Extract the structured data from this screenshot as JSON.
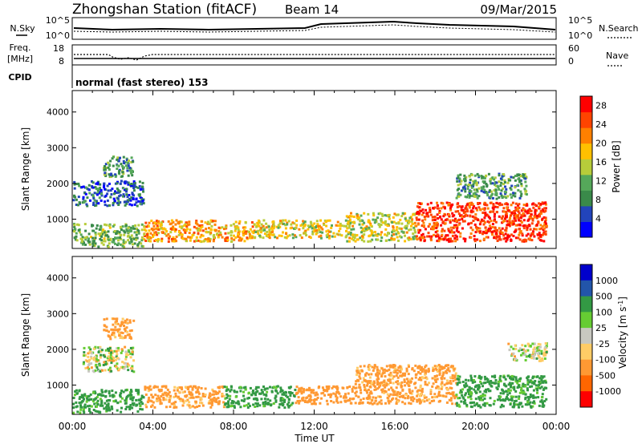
{
  "header": {
    "title": "Zhongshan Station (fitACF)",
    "beam": "Beam 14",
    "date": "09/Mar/2015"
  },
  "noise_panel": {
    "left_label": "N.Sky",
    "right_label": "N.Search",
    "ticks_left": [
      "10^5",
      "10^0"
    ],
    "ticks_right": [
      "10^5",
      "10^0"
    ]
  },
  "freq_panel": {
    "left_label_1": "Freq.",
    "left_label_2": "[MHz]",
    "ticks_left": [
      "18",
      "8"
    ],
    "right_label": "Nave",
    "ticks_right": [
      "60",
      "0"
    ]
  },
  "cpid": {
    "label": "CPID",
    "program": "normal (fast stereo) 153"
  },
  "colors": {
    "power_scale": [
      "#0000ff",
      "#2244bb",
      "#3a8a4a",
      "#55a85a",
      "#b7cc3a",
      "#ffc000",
      "#ff8000",
      "#ff4400",
      "#ff0000"
    ],
    "velocity_scale": [
      "#ff0000",
      "#ff6600",
      "#ff9933",
      "#ffcc66",
      "#c8c8c0",
      "#66cc33",
      "#339944",
      "#2255aa",
      "#0000cc"
    ]
  },
  "chart_data": [
    {
      "type": "heatmap",
      "name": "power",
      "ylabel": "Slant Range [km]",
      "xlabel": "",
      "ylim": [
        180,
        4600
      ],
      "yticks": [
        1000,
        2000,
        3000,
        4000
      ],
      "xlim": [
        0,
        24
      ],
      "colorbar": {
        "label": "Power [dB]",
        "ticks": [
          "4",
          "8",
          "12",
          "16",
          "20",
          "24",
          "28"
        ],
        "range": [
          0,
          30
        ]
      },
      "scatter_regions": [
        {
          "t0": 0.0,
          "t1": 3.5,
          "r0": 250,
          "r1": 900,
          "value": 12
        },
        {
          "t0": 1.5,
          "t1": 3.0,
          "r0": 2200,
          "r1": 2800,
          "value": 10
        },
        {
          "t0": 0.0,
          "t1": 3.5,
          "r0": 1400,
          "r1": 2100,
          "value": 6
        },
        {
          "t0": 3.5,
          "t1": 9.0,
          "r0": 400,
          "r1": 1000,
          "value": 20
        },
        {
          "t0": 9.0,
          "t1": 13.5,
          "r0": 500,
          "r1": 1000,
          "value": 17
        },
        {
          "t0": 13.5,
          "t1": 17.0,
          "r0": 400,
          "r1": 1200,
          "value": 16
        },
        {
          "t0": 17.0,
          "t1": 23.5,
          "r0": 400,
          "r1": 1500,
          "value": 26
        },
        {
          "t0": 19.0,
          "t1": 22.5,
          "r0": 1600,
          "r1": 2300,
          "value": 10
        }
      ]
    },
    {
      "type": "heatmap",
      "name": "velocity",
      "ylabel": "Slant Range [km]",
      "xlabel": "Time UT",
      "ylim": [
        180,
        4600
      ],
      "yticks": [
        1000,
        2000,
        3000,
        4000
      ],
      "xlim": [
        0,
        24
      ],
      "xticks": [
        "00:00",
        "04:00",
        "08:00",
        "12:00",
        "16:00",
        "20:00",
        "00:00"
      ],
      "colorbar": {
        "label": "Velocity [m s-1]",
        "ticks": [
          "1000",
          "500",
          "100",
          "25",
          "-25",
          "-100",
          "-500",
          "-1000"
        ]
      },
      "scatter_regions": [
        {
          "t0": 0.0,
          "t1": 3.5,
          "r0": 250,
          "r1": 900,
          "value": 200
        },
        {
          "t0": 0.5,
          "t1": 3.0,
          "r0": 1400,
          "r1": 2100,
          "value": 0
        },
        {
          "t0": 1.5,
          "t1": 3.0,
          "r0": 2300,
          "r1": 2900,
          "value": -200
        },
        {
          "t0": 3.5,
          "t1": 7.5,
          "r0": 400,
          "r1": 1000,
          "value": -200
        },
        {
          "t0": 7.5,
          "t1": 11.0,
          "r0": 400,
          "r1": 1000,
          "value": 200
        },
        {
          "t0": 11.0,
          "t1": 14.0,
          "r0": 500,
          "r1": 1000,
          "value": -300
        },
        {
          "t0": 14.0,
          "t1": 19.0,
          "r0": 500,
          "r1": 1600,
          "value": -200
        },
        {
          "t0": 19.0,
          "t1": 23.5,
          "r0": 400,
          "r1": 1300,
          "value": 200
        },
        {
          "t0": 21.5,
          "t1": 23.5,
          "r0": 1700,
          "r1": 2200,
          "value": 0
        }
      ]
    }
  ]
}
